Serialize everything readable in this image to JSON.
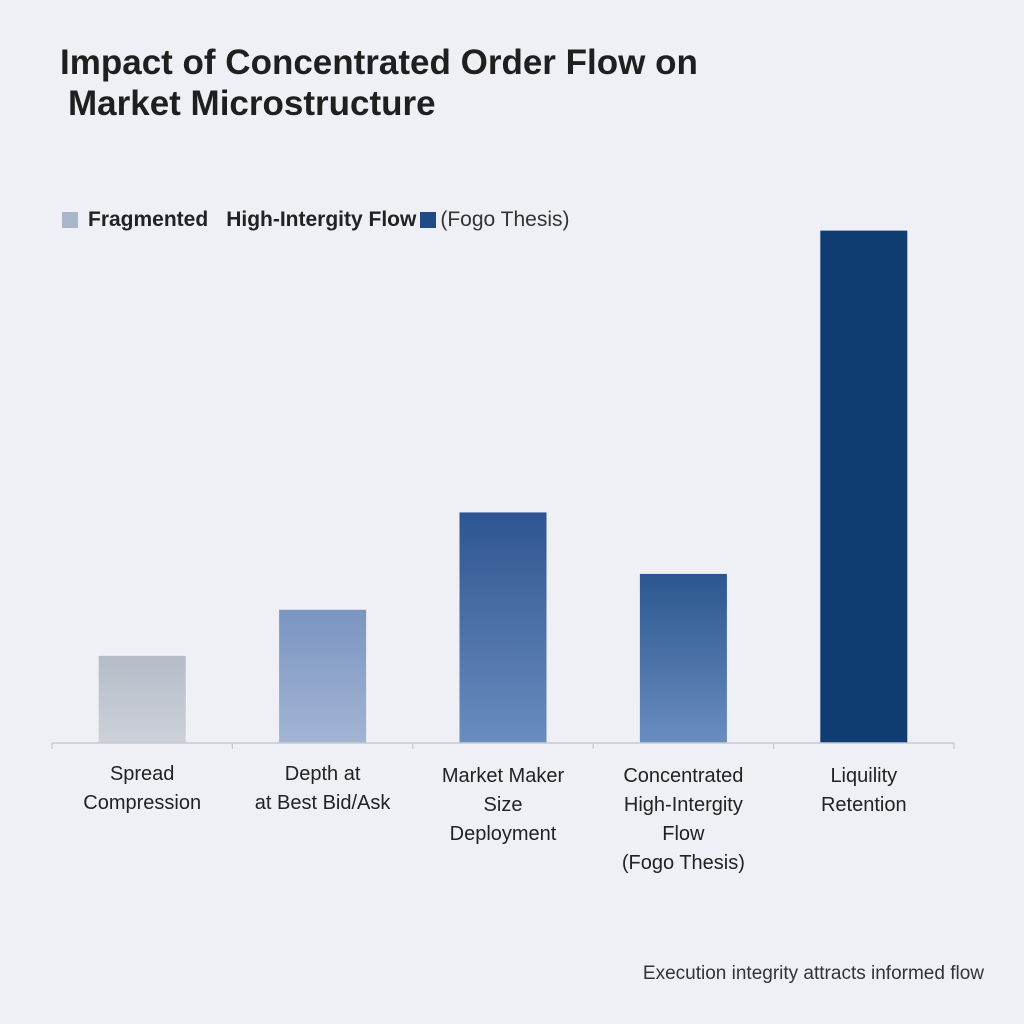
{
  "chart_data": {
    "type": "bar",
    "title_lines": [
      "Impact of Concentrated Order Flow on",
      "Market Microstructure"
    ],
    "legend": {
      "fragmented": "Fragmented",
      "high_integrity": "High-Intergity Flow",
      "high_integrity_suffix": "(Fogo Thesis)"
    },
    "categories": [
      "Spread\nCompression",
      "Depth at\nat Best Bid/Ask",
      "Market Maker\nSize\nDeployment",
      "Concentrated\nHigh-Intergity\nFlow\n(Fogo Thesis)",
      "Liquility\nRetention"
    ],
    "values": [
      17,
      26,
      45,
      33,
      100
    ],
    "ylim": [
      0,
      105
    ],
    "xlabel": "",
    "ylabel": "",
    "grid": false,
    "legend_position": "top-left",
    "colors": {
      "bars": [
        [
          "#cdd1d9",
          "#b5bcc7"
        ],
        [
          "#a3b4d3",
          "#7a95c2"
        ],
        [
          "#6a8dbf",
          "#2d5591"
        ],
        [
          "#6a8dbf",
          "#2a568f"
        ],
        [
          "#0f3d72",
          "#0f3d72"
        ]
      ],
      "axis": "#c6cad2"
    }
  },
  "footnote": "Execution integrity attracts informed flow"
}
